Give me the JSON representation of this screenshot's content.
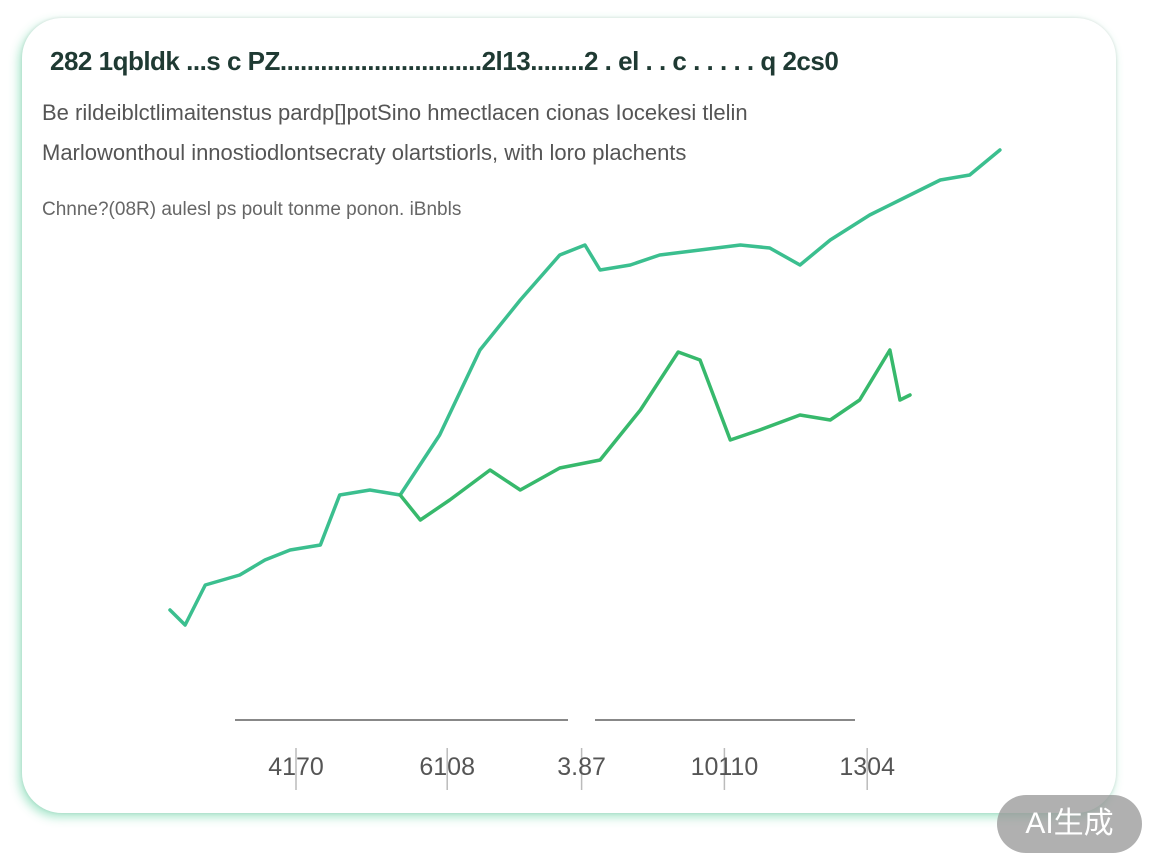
{
  "chart_data": {
    "type": "line",
    "title": "282 1qbldk ...s c PZ..............................2l13........2 . el . . c . . . . . q 2cs0",
    "subtitle": [
      "Be rildeiblctlimaitenstus pardp[]potSino hmectlacen cionas Iocekesi tlelin",
      "Marlowonthoul innostiodlontsecraty olartstiorls, with loro plachents"
    ],
    "note": "Chnne?(08R) aulesl ps poult tonme ponon. iBnbls",
    "xlim": [
      0,
      100
    ],
    "ylim": [
      0,
      100
    ],
    "xticks": [
      {
        "value": 15,
        "label": "4170"
      },
      {
        "value": 33,
        "label": "6108"
      },
      {
        "value": 49,
        "label": "3.87"
      },
      {
        "value": 66,
        "label": "10110"
      },
      {
        "value": 83,
        "label": "1304"
      }
    ],
    "series": [
      {
        "color": "#3bbf8f",
        "x": [
          0,
          1.8,
          4.2,
          8.3,
          11.3,
          14.3,
          17.9,
          20.2,
          23.8,
          27.4,
          32.1,
          36.9,
          41.7,
          46.4,
          49.4,
          51.2,
          54.8,
          58.3,
          63.1,
          67.9,
          71.4,
          75,
          78.6,
          83.3,
          86.9,
          91.7,
          95.2,
          98.8
        ],
        "values": [
          6,
          3,
          11,
          13,
          16,
          18,
          19,
          29,
          30,
          29,
          41,
          58,
          68,
          77,
          79,
          74,
          75,
          77,
          78,
          79,
          78.4,
          75,
          80,
          85,
          88,
          92,
          93,
          98
        ]
      },
      {
        "color": "#37b96c",
        "x": [
          27.4,
          29.8,
          33.3,
          38.1,
          41.7,
          46.4,
          51.2,
          56,
          60.5,
          63.1,
          66.7,
          70.2,
          75,
          78.6,
          82.1,
          85.7,
          86.9,
          88.1
        ],
        "values": [
          29,
          24,
          28,
          34,
          30,
          34.4,
          36,
          46,
          57.6,
          56,
          40,
          42,
          45,
          44,
          48,
          58,
          48,
          49
        ]
      }
    ]
  },
  "watermark": "AI生成"
}
